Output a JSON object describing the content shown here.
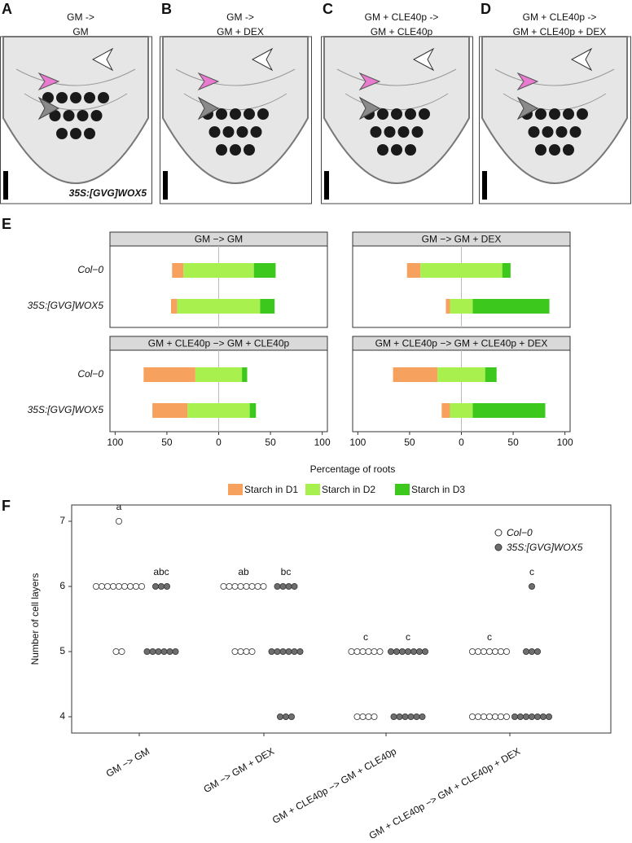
{
  "images": [
    {
      "label": "A",
      "title": [
        "GM ->",
        "GM"
      ],
      "caption": "35S:[GVG]WOX5"
    },
    {
      "label": "B",
      "title": [
        "GM ->",
        "GM + DEX"
      ]
    },
    {
      "label": "C",
      "title": [
        "GM + CLE40p ->",
        "GM + CLE40p"
      ]
    },
    {
      "label": "D",
      "title": [
        "GM + CLE40p ->",
        "GM + CLE40p + DEX"
      ]
    }
  ],
  "chart_data": [
    {
      "type": "bar",
      "label": "E",
      "layout": "diverging",
      "xlabel": "Percentage of roots",
      "categories": [
        "Col−0",
        "35S:[GVG]WOX5"
      ],
      "xlim": [
        -105,
        105
      ],
      "xticks": [
        {
          "value": -100,
          "label": "100"
        },
        {
          "value": -50,
          "label": "50"
        },
        0,
        50,
        100
      ],
      "series": [
        {
          "name": "Starch in D1",
          "color": "#f6a25e"
        },
        {
          "name": "Starch in D2",
          "color": "#a8f04e"
        },
        {
          "name": "Starch in D3",
          "color": "#3cc81c"
        }
      ],
      "facets": [
        {
          "title": "GM −> GM",
          "values": [
            [
              11,
              6
            ],
            [
              68,
              80
            ],
            [
              21,
              14
            ]
          ]
        },
        {
          "title": "GM −> GM + DEX",
          "values": [
            [
              13,
              4
            ],
            [
              79,
              22
            ],
            [
              8,
              74
            ]
          ]
        },
        {
          "title": "GM + CLE40p −> GM + CLE40p",
          "values": [
            [
              50,
              34
            ],
            [
              45,
              60
            ],
            [
              5,
              6
            ]
          ]
        },
        {
          "title": "GM + CLE40p −> GM + CLE40p + DEX",
          "values": [
            [
              43,
              8
            ],
            [
              46,
              22
            ],
            [
              11,
              70
            ]
          ]
        }
      ]
    },
    {
      "type": "dot",
      "label": "F",
      "ylabel": "Number of cell layers",
      "categories": [
        "GM −> GM",
        "GM −> GM + DEX",
        "GM + CLE40p −> GM + CLE40p",
        "GM + CLE40p −> GM + CLE40p + DEX"
      ],
      "ylim": [
        3.75,
        7.25
      ],
      "yticks": [
        4,
        5,
        6,
        7
      ],
      "series": [
        {
          "name": "Col−0",
          "color": "#ffffff",
          "letters": [
            "a",
            "ab",
            "c",
            "c"
          ],
          "values": [
            [
              7,
              6,
              6,
              6,
              6,
              6,
              6,
              6,
              6,
              6,
              5,
              5
            ],
            [
              6,
              6,
              6,
              6,
              6,
              6,
              6,
              6,
              5,
              5,
              5,
              5
            ],
            [
              5,
              5,
              5,
              5,
              5,
              5,
              4,
              4,
              4,
              4
            ],
            [
              5,
              5,
              5,
              5,
              5,
              5,
              5,
              4,
              4,
              4,
              4,
              4,
              4,
              4
            ]
          ]
        },
        {
          "name": "35S:[GVG]WOX5",
          "color": "#6e6e6e",
          "letters": [
            "abc",
            "bc",
            "c",
            "c"
          ],
          "values": [
            [
              6,
              6,
              6,
              5,
              5,
              5,
              5,
              5,
              5
            ],
            [
              6,
              6,
              6,
              6,
              5,
              5,
              5,
              5,
              5,
              5,
              4,
              4,
              4
            ],
            [
              5,
              5,
              5,
              5,
              5,
              5,
              5,
              4,
              4,
              4,
              4,
              4,
              4
            ],
            [
              6,
              5,
              5,
              5,
              4,
              4,
              4,
              4,
              4,
              4,
              4
            ]
          ]
        }
      ]
    }
  ]
}
